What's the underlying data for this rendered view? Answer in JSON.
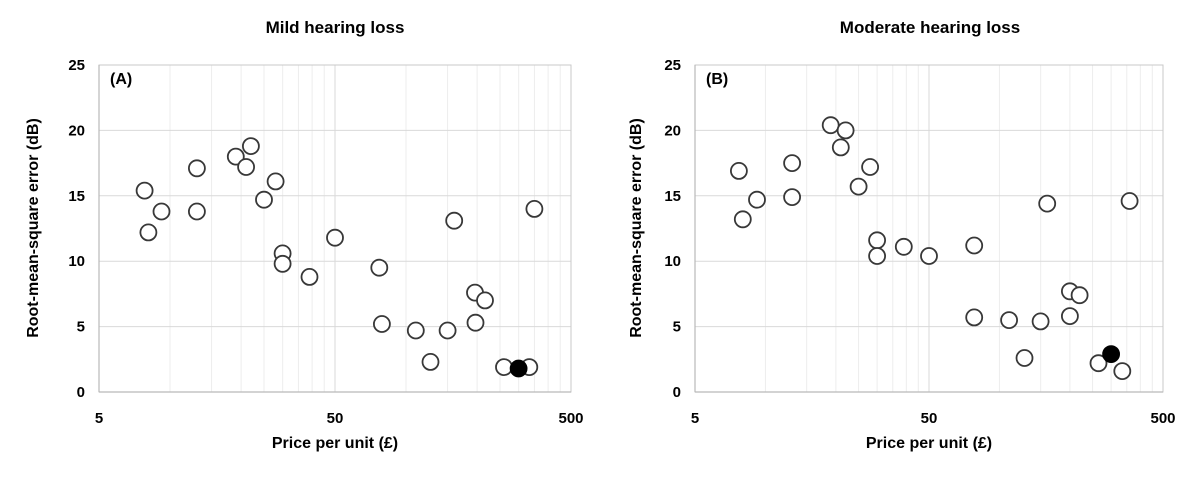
{
  "colors": {
    "background": "#ffffff",
    "text": "#000000",
    "plot_border": "#c9c9c9",
    "gridline_major": "#d9d9d9",
    "gridline_minor": "#ededed",
    "axis_line": "#b9b9b9",
    "marker_stroke": "#383838",
    "marker_fill": "#ffffff",
    "highlight_fill": "#000000"
  },
  "chart_data": [
    {
      "type": "scatter",
      "panel_label": "(A)",
      "title": "Mild hearing loss",
      "xlabel": "Price per unit (£)",
      "ylabel": "Root-mean-square error (dB)",
      "xscale": "log",
      "xlim": [
        5,
        500
      ],
      "ylim": [
        0,
        25
      ],
      "x_major_ticks": [
        5,
        50,
        500
      ],
      "x_tick_labels": [
        "5",
        "50",
        "500"
      ],
      "y_major_ticks": [
        0,
        5,
        10,
        15,
        20,
        25
      ],
      "y_tick_labels": [
        "0",
        "5",
        "10",
        "15",
        "20",
        "25"
      ],
      "grid": "major-and-log-minor",
      "legend": "none",
      "series": [
        {
          "name": "open_circles",
          "marker": "open-circle",
          "points": [
            [
              7.8,
              15.4
            ],
            [
              9.2,
              13.8
            ],
            [
              8.1,
              12.2
            ],
            [
              13,
              17.1
            ],
            [
              13,
              13.8
            ],
            [
              19,
              18.0
            ],
            [
              22,
              18.8
            ],
            [
              21,
              17.2
            ],
            [
              25,
              14.7
            ],
            [
              28,
              16.1
            ],
            [
              30,
              10.6
            ],
            [
              30,
              9.8
            ],
            [
              39,
              8.8
            ],
            [
              50,
              11.8
            ],
            [
              77,
              9.5
            ],
            [
              79,
              5.2
            ],
            [
              110,
              4.7
            ],
            [
              127,
              2.3
            ],
            [
              150,
              4.7
            ],
            [
              160,
              13.1
            ],
            [
              196,
              7.6
            ],
            [
              216,
              7.0
            ],
            [
              197,
              5.3
            ],
            [
              260,
              1.9
            ],
            [
              333,
              1.9
            ],
            [
              350,
              14.0
            ]
          ]
        },
        {
          "name": "filled_highlight",
          "marker": "filled-circle",
          "points": [
            [
              300,
              1.8
            ]
          ]
        }
      ]
    },
    {
      "type": "scatter",
      "panel_label": "(B)",
      "title": "Moderate hearing loss",
      "xlabel": "Price per unit (£)",
      "ylabel": "Root-mean-square error (dB)",
      "xscale": "log",
      "xlim": [
        5,
        500
      ],
      "ylim": [
        0,
        25
      ],
      "x_major_ticks": [
        5,
        50,
        500
      ],
      "x_tick_labels": [
        "5",
        "50",
        "500"
      ],
      "y_major_ticks": [
        0,
        5,
        10,
        15,
        20,
        25
      ],
      "y_tick_labels": [
        "0",
        "5",
        "10",
        "15",
        "20",
        "25"
      ],
      "grid": "major-and-log-minor",
      "legend": "none",
      "series": [
        {
          "name": "open_circles",
          "marker": "open-circle",
          "points": [
            [
              7.7,
              16.9
            ],
            [
              9.2,
              14.7
            ],
            [
              8.0,
              13.2
            ],
            [
              13,
              17.5
            ],
            [
              13,
              14.9
            ],
            [
              19,
              20.4
            ],
            [
              22,
              20.0
            ],
            [
              21,
              18.7
            ],
            [
              25,
              15.7
            ],
            [
              28,
              17.2
            ],
            [
              30,
              11.6
            ],
            [
              30,
              10.4
            ],
            [
              39,
              11.1
            ],
            [
              50,
              10.4
            ],
            [
              78,
              11.2
            ],
            [
              78,
              5.7
            ],
            [
              110,
              5.5
            ],
            [
              128,
              2.6
            ],
            [
              150,
              5.4
            ],
            [
              160,
              14.4
            ],
            [
              200,
              7.7
            ],
            [
              200,
              5.8
            ],
            [
              220,
              7.4
            ],
            [
              265,
              2.2
            ],
            [
              335,
              1.6
            ],
            [
              360,
              14.6
            ]
          ]
        },
        {
          "name": "filled_highlight",
          "marker": "filled-circle",
          "points": [
            [
              300,
              2.9
            ]
          ]
        }
      ]
    }
  ]
}
